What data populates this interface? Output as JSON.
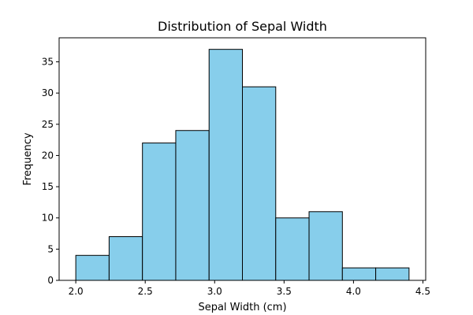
{
  "chart_data": {
    "type": "bar",
    "subtype": "histogram",
    "title": "Distribution of Sepal Width",
    "xlabel": "Sepal Width (cm)",
    "ylabel": "Frequency",
    "bin_edges": [
      2.0,
      2.24,
      2.48,
      2.72,
      2.96,
      3.2,
      3.44,
      3.68,
      3.92,
      4.16,
      4.4
    ],
    "values": [
      4,
      7,
      22,
      24,
      37,
      31,
      10,
      11,
      2,
      2
    ],
    "xlim": [
      1.88,
      4.52
    ],
    "ylim": [
      0,
      38.85
    ],
    "x_ticks": [
      2.0,
      2.5,
      3.0,
      3.5,
      4.0,
      4.5
    ],
    "x_tick_labels": [
      "2.0",
      "2.5",
      "3.0",
      "3.5",
      "4.0",
      "4.5"
    ],
    "y_ticks": [
      0,
      5,
      10,
      15,
      20,
      25,
      30,
      35
    ],
    "y_tick_labels": [
      "0",
      "5",
      "10",
      "15",
      "20",
      "25",
      "30",
      "35"
    ],
    "bar_color": "#87CEEB",
    "edge_color": "#000000",
    "grid": false
  }
}
